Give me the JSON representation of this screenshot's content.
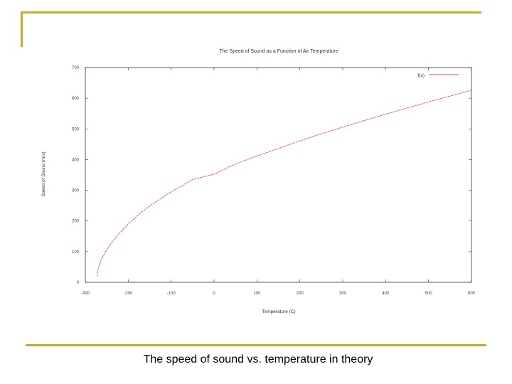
{
  "caption": "The speed of sound vs. temperature in theory",
  "colors": {
    "accent": "#c8a82c",
    "series": "#d9534f",
    "axis": "#333333"
  },
  "chart_data": {
    "type": "line",
    "title": "The Speed of Sound as a Function of Air Temperature",
    "xlabel": "Temperature (C)",
    "ylabel": "Speed of Sound (m/s)",
    "xlim": [
      -300,
      600
    ],
    "ylim": [
      0,
      700
    ],
    "xticks": [
      -300,
      -200,
      -100,
      0,
      100,
      200,
      300,
      400,
      500,
      600
    ],
    "yticks": [
      0,
      100,
      200,
      300,
      400,
      500,
      600,
      700
    ],
    "grid": false,
    "legend": "top-right",
    "series": [
      {
        "name": "f(x)",
        "x": [
          -273,
          -272,
          -270,
          -265,
          -260,
          -250,
          -240,
          -225,
          -200,
          -175,
          -150,
          -100,
          -50,
          0,
          50,
          100,
          150,
          200,
          250,
          300,
          350,
          400,
          450,
          500,
          550,
          600
        ],
        "y": [
          20,
          29,
          44,
          66,
          82,
          107,
          127,
          153,
          190,
          222,
          249,
          295,
          335,
          352,
          386,
          412,
          436,
          461,
          484,
          506,
          527,
          548,
          568,
          588,
          607,
          626
        ]
      }
    ]
  }
}
